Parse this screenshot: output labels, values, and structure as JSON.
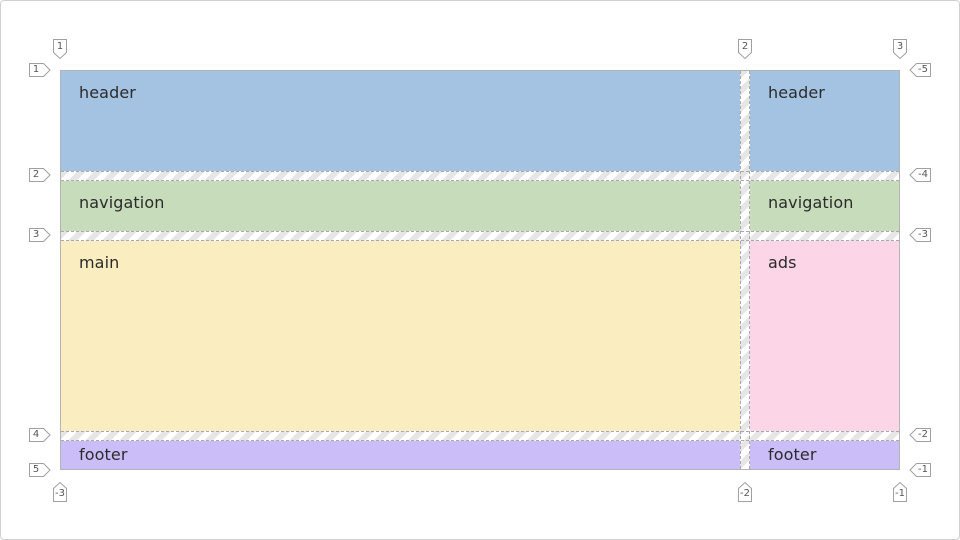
{
  "areas": {
    "header_main": "header",
    "header_side": "header",
    "nav_main": "navigation",
    "nav_side": "navigation",
    "main": "main",
    "ads": "ads",
    "footer_main": "footer",
    "footer_side": "footer"
  },
  "line_numbers": {
    "column_top": [
      "1",
      "2",
      "3"
    ],
    "column_bottom": [
      "-3",
      "-2",
      "-1"
    ],
    "row_left": [
      "1",
      "2",
      "3",
      "4",
      "5"
    ],
    "row_right": [
      "-5",
      "-4",
      "-3",
      "-2",
      "-1"
    ]
  },
  "colors": {
    "header": "#a4c3e3",
    "navigation": "#c7dcba",
    "main": "#faedc0",
    "ads": "#fcd5e6",
    "footer": "#cbbdf7"
  }
}
